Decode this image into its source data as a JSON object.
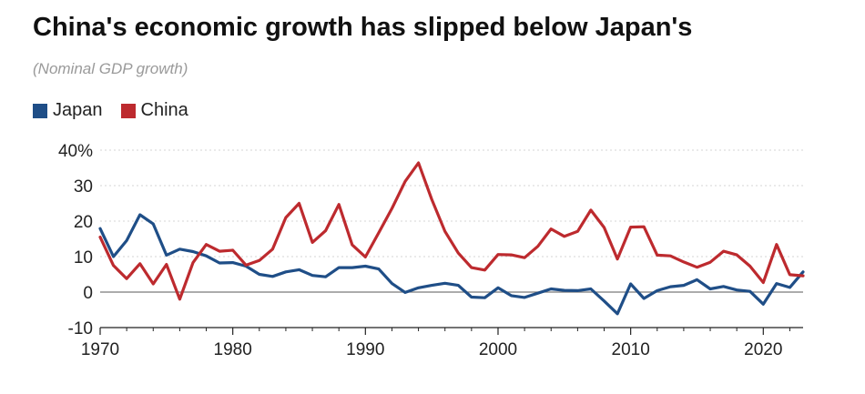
{
  "colors": {
    "japan": "#1f4e87",
    "china": "#bd2a2e",
    "grid": "#d6d6d6",
    "zero_line": "#7a7a7a",
    "axis": "#222222"
  },
  "chart_data": {
    "type": "line",
    "title": "China's economic growth has slipped below Japan's",
    "subtitle": "(Nominal GDP growth)",
    "xlabel": "",
    "ylabel": "",
    "xlim": [
      1970,
      2023
    ],
    "ylim": [
      -10,
      40
    ],
    "y_ticks": [
      {
        "value": 40,
        "label": "40%"
      },
      {
        "value": 30,
        "label": "30"
      },
      {
        "value": 20,
        "label": "20"
      },
      {
        "value": 10,
        "label": "10"
      },
      {
        "value": 0,
        "label": "0"
      },
      {
        "value": -10,
        "label": "-10"
      }
    ],
    "x_ticks": [
      {
        "value": 1970,
        "label": "1970"
      },
      {
        "value": 1980,
        "label": "1980"
      },
      {
        "value": 1990,
        "label": "1990"
      },
      {
        "value": 2000,
        "label": "2000"
      },
      {
        "value": 2010,
        "label": "2010"
      },
      {
        "value": 2020,
        "label": "2020"
      }
    ],
    "grid": true,
    "legend_position": "top-left",
    "x": [
      1970,
      1971,
      1972,
      1973,
      1974,
      1975,
      1976,
      1977,
      1978,
      1979,
      1980,
      1981,
      1982,
      1983,
      1984,
      1985,
      1986,
      1987,
      1988,
      1989,
      1990,
      1991,
      1992,
      1993,
      1994,
      1995,
      1996,
      1997,
      1998,
      1999,
      2000,
      2001,
      2002,
      2003,
      2004,
      2005,
      2006,
      2007,
      2008,
      2009,
      2010,
      2011,
      2012,
      2013,
      2014,
      2015,
      2016,
      2017,
      2018,
      2019,
      2020,
      2021,
      2022,
      2023
    ],
    "series": [
      {
        "name": "Japan",
        "color_key": "japan",
        "values": [
          17.9,
          10.0,
          14.5,
          21.8,
          19.2,
          10.4,
          12.1,
          11.4,
          10.2,
          8.2,
          8.3,
          7.3,
          5.0,
          4.4,
          5.7,
          6.3,
          4.7,
          4.3,
          6.9,
          6.9,
          7.3,
          6.5,
          2.4,
          -0.1,
          1.2,
          1.9,
          2.5,
          1.9,
          -1.4,
          -1.6,
          1.2,
          -1.0,
          -1.5,
          -0.3,
          0.9,
          0.5,
          0.4,
          0.9,
          -2.5,
          -6.1,
          2.3,
          -1.8,
          0.4,
          1.5,
          1.9,
          3.5,
          0.9,
          1.6,
          0.6,
          0.2,
          -3.4,
          2.4,
          1.3,
          5.7
        ]
      },
      {
        "name": "China",
        "color_key": "china",
        "values": [
          15.5,
          7.5,
          3.8,
          8.0,
          2.3,
          7.8,
          -2.0,
          8.3,
          13.4,
          11.5,
          11.8,
          7.6,
          8.9,
          12.1,
          21.0,
          25.0,
          14.0,
          17.3,
          24.7,
          13.3,
          9.9,
          16.7,
          23.6,
          31.2,
          36.4,
          26.1,
          17.1,
          11.0,
          6.9,
          6.2,
          10.6,
          10.5,
          9.7,
          12.9,
          17.8,
          15.7,
          17.1,
          23.1,
          18.2,
          9.3,
          18.3,
          18.4,
          10.4,
          10.2,
          8.5,
          7.0,
          8.4,
          11.5,
          10.5,
          7.3,
          2.7,
          13.4,
          4.9,
          4.6
        ]
      }
    ]
  }
}
